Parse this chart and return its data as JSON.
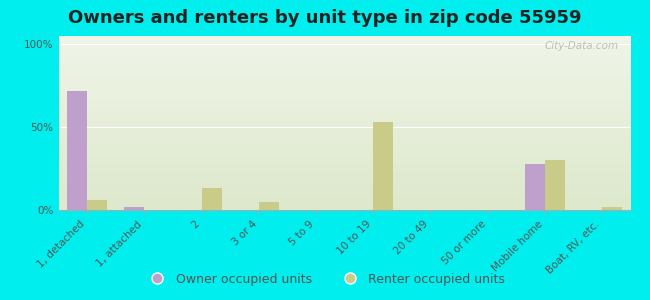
{
  "title": "Owners and renters by unit type in zip code 55959",
  "categories": [
    "1, detached",
    "1, attached",
    "2",
    "3 or 4",
    "5 to 9",
    "10 to 19",
    "20 to 49",
    "50 or more",
    "Mobile home",
    "Boat, RV, etc."
  ],
  "owner_values": [
    72,
    2,
    0,
    0,
    0,
    0,
    0,
    0,
    28,
    0
  ],
  "renter_values": [
    6,
    0,
    13,
    5,
    0,
    53,
    0,
    0,
    30,
    2
  ],
  "owner_color": "#bf9fcc",
  "renter_color": "#c8cc88",
  "bg_color_top": "#dde8cc",
  "bg_color_bottom": "#f0f5e8",
  "outer_background": "#00eeee",
  "ylabel_ticks": [
    "0%",
    "50%",
    "100%"
  ],
  "yticks": [
    0,
    50,
    100
  ],
  "ylim": [
    0,
    105
  ],
  "watermark": "City-Data.com",
  "bar_width": 0.35,
  "title_fontsize": 13,
  "tick_fontsize": 7.5,
  "legend_fontsize": 9
}
